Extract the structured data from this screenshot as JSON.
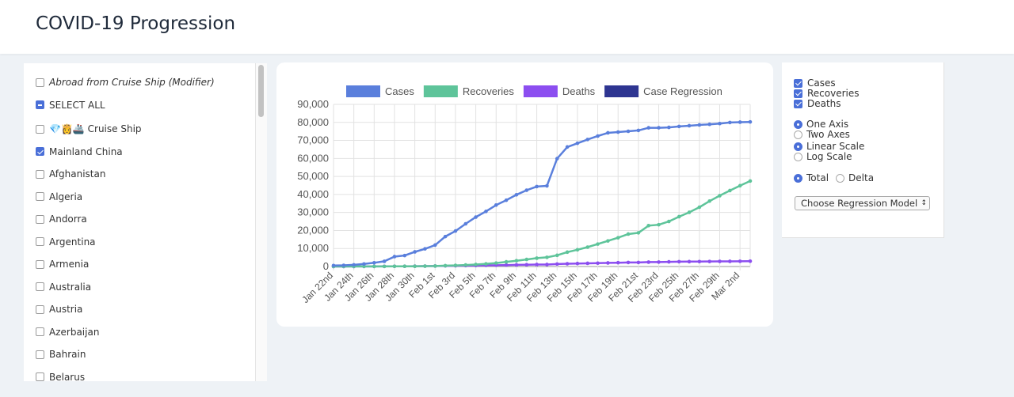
{
  "header": {
    "title": "COVID-19 Progression"
  },
  "sidebar": {
    "items": [
      {
        "label": "Abroad from Cruise Ship (Modifier)",
        "state": "unchecked",
        "italic": true
      },
      {
        "label": "SELECT ALL",
        "state": "indeterminate"
      },
      {
        "label": "💎👸🚢 Cruise Ship",
        "state": "unchecked"
      },
      {
        "label": "Mainland China",
        "state": "checked"
      },
      {
        "label": "Afghanistan",
        "state": "unchecked"
      },
      {
        "label": "Algeria",
        "state": "unchecked"
      },
      {
        "label": "Andorra",
        "state": "unchecked"
      },
      {
        "label": "Argentina",
        "state": "unchecked"
      },
      {
        "label": "Armenia",
        "state": "unchecked"
      },
      {
        "label": "Australia",
        "state": "unchecked"
      },
      {
        "label": "Austria",
        "state": "unchecked"
      },
      {
        "label": "Azerbaijan",
        "state": "unchecked"
      },
      {
        "label": "Bahrain",
        "state": "unchecked"
      },
      {
        "label": "Belarus",
        "state": "unchecked"
      }
    ]
  },
  "options": {
    "toggles": [
      {
        "label": "Cases",
        "checked": true
      },
      {
        "label": "Recoveries",
        "checked": true
      },
      {
        "label": "Deaths",
        "checked": true
      }
    ],
    "radio_groups": [
      {
        "options": [
          "One Axis",
          "Two Axes"
        ],
        "selected": 0
      },
      {
        "options": [
          "Linear Scale",
          "Log Scale"
        ],
        "selected": 0
      },
      {
        "options": [
          "Total",
          "Delta"
        ],
        "selected": 0
      }
    ],
    "regression_select": "Choose Regression Model"
  },
  "chart_data": {
    "type": "line",
    "legend": "top",
    "grid": true,
    "categories": [
      "Jan 22nd",
      null,
      "Jan 24th",
      null,
      "Jan 26th",
      null,
      "Jan 28th",
      null,
      "Jan 30th",
      null,
      "Feb 1st",
      null,
      "Feb 3rd",
      null,
      "Feb 5th",
      null,
      "Feb 7th",
      null,
      "Feb 9th",
      null,
      "Feb 11th",
      null,
      "Feb 13th",
      null,
      "Feb 15th",
      null,
      "Feb 17th",
      null,
      "Feb 19th",
      null,
      "Feb 21st",
      null,
      "Feb 23rd",
      null,
      "Feb 25th",
      null,
      "Feb 27th",
      null,
      "Feb 29th",
      null,
      "Mar 2nd",
      null
    ],
    "ylim": [
      0,
      90000
    ],
    "yticks": [
      0,
      {
        "value": 10000,
        "label": "10,000"
      },
      {
        "value": 20000,
        "label": "20,000"
      },
      {
        "value": 30000,
        "label": "30,000"
      },
      {
        "value": 40000,
        "label": "40,000"
      },
      {
        "value": 50000,
        "label": "50,000"
      },
      {
        "value": 60000,
        "label": "60,000"
      },
      {
        "value": 70000,
        "label": "70,000"
      },
      {
        "value": 80000,
        "label": "80,000"
      },
      {
        "value": 90000,
        "label": "90,000"
      }
    ],
    "series": [
      {
        "name": "Cases",
        "color": "#5a7fdc",
        "values": [
          548,
          643,
          920,
          1406,
          2075,
          2877,
          5509,
          6087,
          8141,
          9802,
          11891,
          16630,
          19716,
          23707,
          27440,
          30587,
          34110,
          36814,
          39829,
          42354,
          44386,
          44759,
          59895,
          66358,
          68413,
          70513,
          72434,
          74211,
          74619,
          75077,
          75550,
          77001,
          77022,
          77241,
          77754,
          78166,
          78600,
          78928,
          79356,
          79932,
          80136,
          80261
        ]
      },
      {
        "name": "Recoveries",
        "color": "#5ec49a",
        "values": [
          28,
          30,
          36,
          39,
          49,
          58,
          101,
          120,
          135,
          214,
          275,
          463,
          614,
          843,
          1115,
          1476,
          1912,
          2606,
          3219,
          3918,
          4636,
          5082,
          6217,
          7977,
          9298,
          10755,
          12462,
          14206,
          15962,
          18014,
          18704,
          22699,
          23187,
          25015,
          27676,
          30084,
          32930,
          36329,
          39320,
          42162,
          44854,
          47450
        ]
      },
      {
        "name": "Deaths",
        "color": "#8c4ef0",
        "values": [
          17,
          18,
          26,
          42,
          56,
          82,
          131,
          133,
          171,
          213,
          259,
          361,
          425,
          490,
          562,
          632,
          717,
          804,
          904,
          1011,
          1111,
          1116,
          1368,
          1520,
          1662,
          1765,
          1863,
          2002,
          2114,
          2236,
          2236,
          2441,
          2443,
          2593,
          2663,
          2715,
          2744,
          2788,
          2835,
          2870,
          2912,
          2943
        ]
      },
      {
        "name": "Case Regression",
        "color": "#2e3591"
      }
    ]
  }
}
